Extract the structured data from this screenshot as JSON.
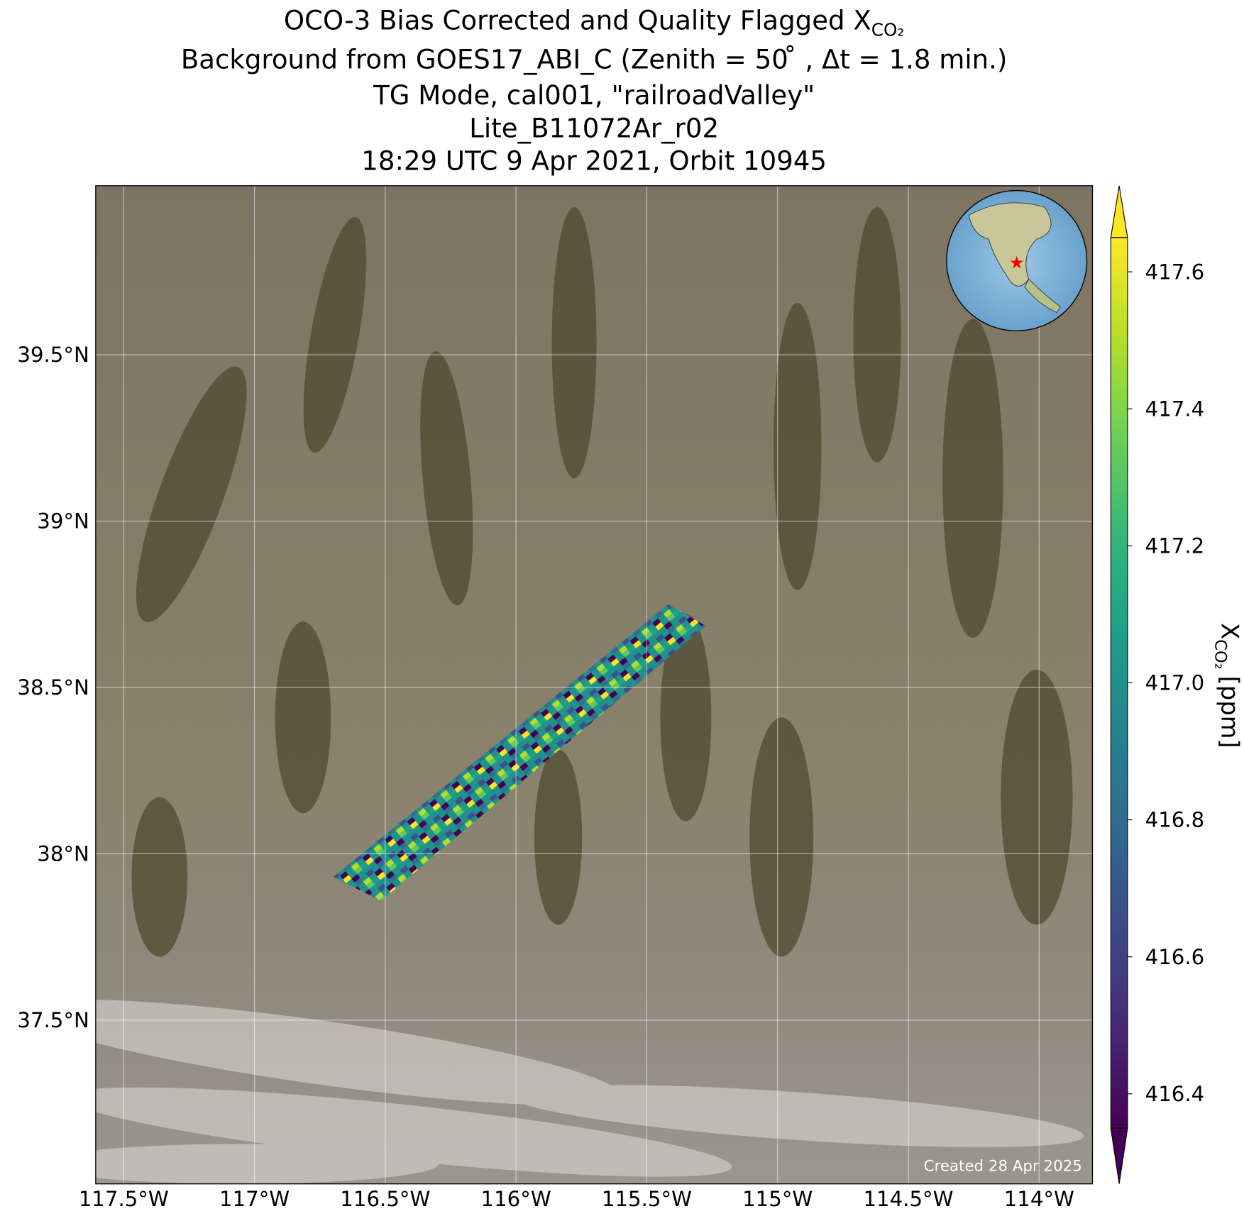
{
  "map": {
    "title_lines": [
      {
        "text": "OCO-3 Bias Corrected and Quality Flagged X",
        "subscript": "CO₂"
      },
      {
        "text": "Background from GOES17_ABI_C (Zenith = 50 ̊ , Δt =  1.8 min.)"
      },
      {
        "text": "TG Mode, cal001, \"railroadValley\""
      },
      {
        "text": "Lite_B11072Ar_r02"
      },
      {
        "text": "18:29 UTC 9 Apr 2021, Orbit 10945"
      }
    ],
    "xlim": [
      -117.607,
      -113.796
    ],
    "ylim": [
      37.008,
      40.008
    ],
    "xticks": [
      {
        "value": -117.5,
        "label": "117.5°W"
      },
      {
        "value": -117,
        "label": "117°W"
      },
      {
        "value": -116.5,
        "label": "116.5°W"
      },
      {
        "value": -116,
        "label": "116°W"
      },
      {
        "value": -115.5,
        "label": "115.5°W"
      },
      {
        "value": -115,
        "label": "115°W"
      },
      {
        "value": -114.5,
        "label": "114.5°W"
      },
      {
        "value": -114,
        "label": "114°W"
      }
    ],
    "yticks": [
      {
        "value": 37.5,
        "label": "37.5°N"
      },
      {
        "value": 38,
        "label": "38°N"
      },
      {
        "value": 38.5,
        "label": "38.5°N"
      },
      {
        "value": 39,
        "label": "39°N"
      },
      {
        "value": 39.5,
        "label": "39.5°N"
      }
    ],
    "grid": true,
    "colorbar": {
      "label": "X",
      "label_subscript": "CO₂",
      "label_unit": "[ppm]",
      "colormap": "viridis",
      "clim": [
        416.35,
        417.65
      ],
      "ticks": [
        416.4,
        416.6,
        416.8,
        417.0,
        417.2,
        417.4,
        417.6
      ],
      "tick_labels": [
        "416.4",
        "416.6",
        "416.8",
        "417.0",
        "417.2",
        "417.4",
        "417.6"
      ]
    },
    "footer": "Created 28 Apr 2025"
  }
}
